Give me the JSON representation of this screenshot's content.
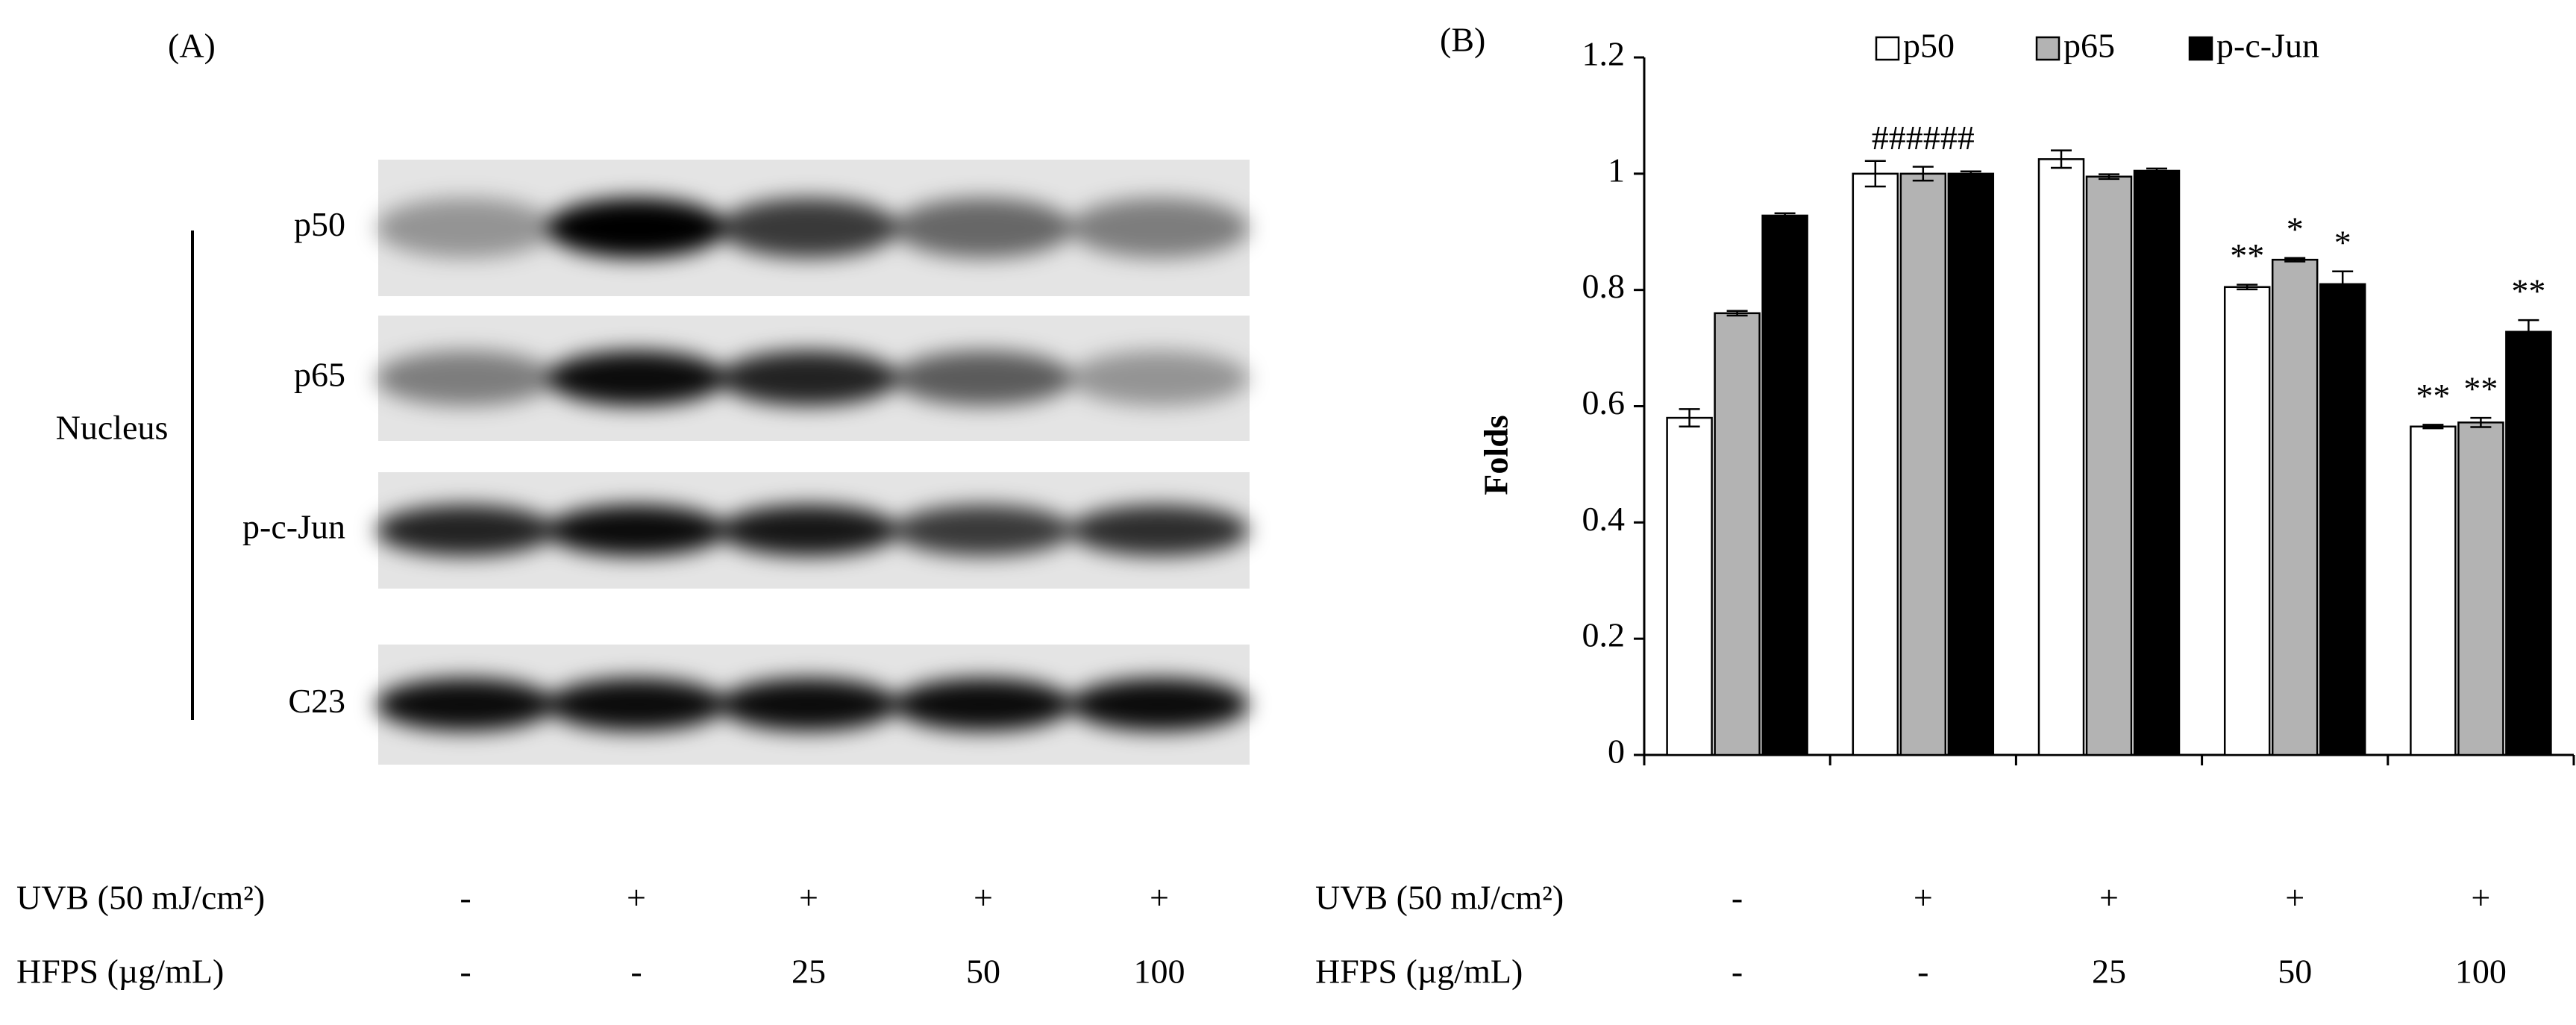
{
  "panel_a": {
    "label": "(A)",
    "compartment": "Nucleus",
    "rows": [
      "p50",
      "p65",
      "p-c-Jun",
      "C23"
    ]
  },
  "treatments": [
    {
      "label": "UVB (50 mJ/cm²)",
      "values": [
        "-",
        "+",
        "+",
        "+",
        "+"
      ]
    },
    {
      "label": "HFPS (µg/mL)",
      "values": [
        "-",
        "-",
        "25",
        "50",
        "100"
      ]
    }
  ],
  "chart_data": {
    "type": "bar",
    "panel_label": "(B)",
    "ylabel": "Folds",
    "categories": [
      null,
      null,
      null,
      null,
      null
    ],
    "ylim": [
      0,
      1.2
    ],
    "yticks": [
      0,
      0.2,
      0.4,
      0.6,
      0.8,
      1,
      1.2
    ],
    "series": [
      {
        "name": "p50",
        "color": "#ffffff",
        "values": [
          0.58,
          1.0,
          1.025,
          0.805,
          0.565
        ],
        "errors": [
          0.015,
          0.022,
          0.015,
          0.004,
          0.003
        ],
        "annotations": [
          null,
          null,
          null,
          "**",
          "**"
        ]
      },
      {
        "name": "p65",
        "color": "#b3b3b3",
        "values": [
          0.76,
          1.0,
          0.995,
          0.852,
          0.572
        ],
        "errors": [
          0.004,
          0.012,
          0.004,
          0.003,
          0.008
        ],
        "annotations": [
          null,
          "######",
          null,
          "*",
          "**"
        ]
      },
      {
        "name": "p-c-Jun",
        "color": "#000000",
        "values": [
          0.928,
          1.0,
          1.005,
          0.81,
          0.728
        ],
        "errors": [
          0.004,
          0.004,
          0.004,
          0.022,
          0.02
        ],
        "annotations": [
          null,
          null,
          null,
          "*",
          "**"
        ]
      }
    ]
  }
}
